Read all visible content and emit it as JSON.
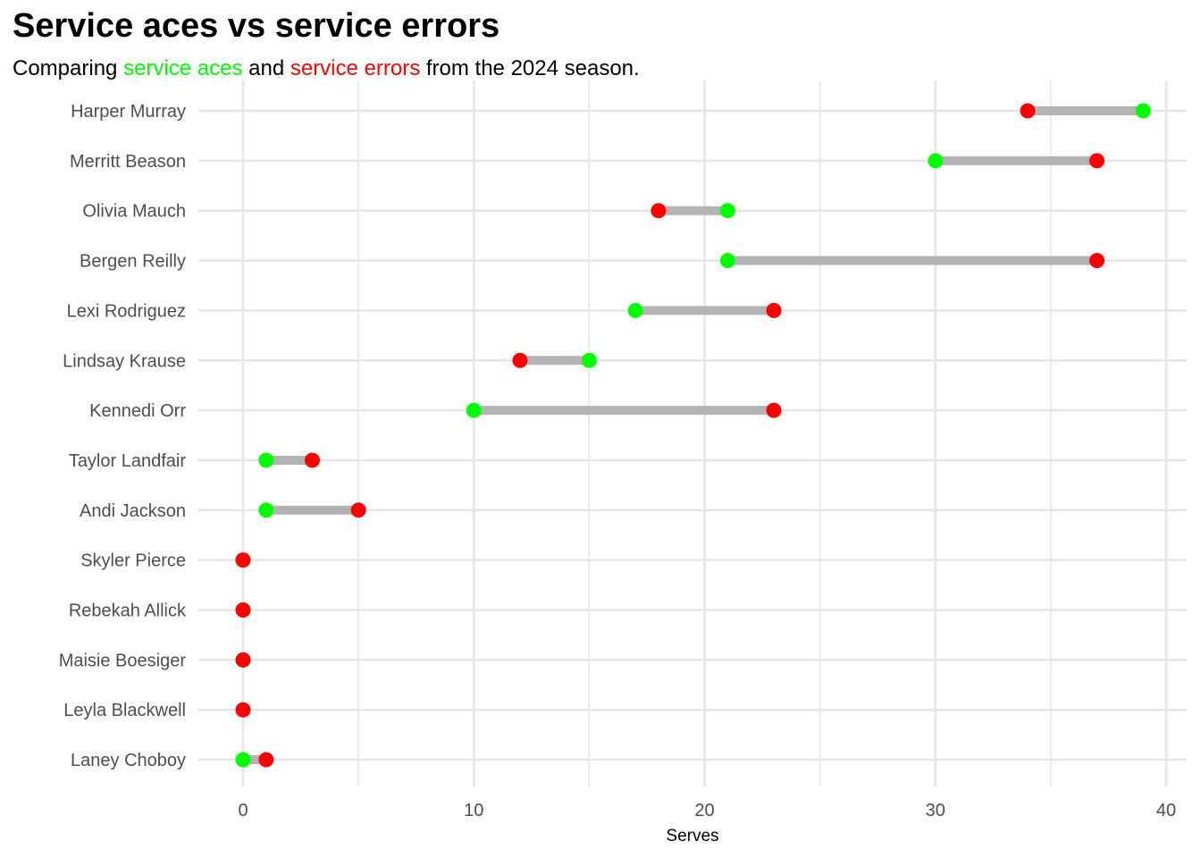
{
  "chart_data": {
    "type": "dumbbell",
    "title": "Service aces vs service errors",
    "subtitle": {
      "prefix": "Comparing ",
      "aces_label": "service aces",
      "middle": " and ",
      "errors_label": "service errors",
      "suffix": " from the 2024 season."
    },
    "xlabel": "Serves",
    "ylabel": "",
    "xlim": [
      0,
      40
    ],
    "xticks": [
      0,
      10,
      20,
      30,
      40
    ],
    "grid": true,
    "legend": "none",
    "colors": {
      "aces": "#00ff00",
      "errors": "#ff0000",
      "segment": "#b3b3b3",
      "grid": "#e5e5e5"
    },
    "series": [
      {
        "name": "service aces",
        "values": [
          39,
          30,
          21,
          21,
          17,
          15,
          10,
          1,
          1,
          0,
          0,
          0,
          0,
          0
        ]
      },
      {
        "name": "service errors",
        "values": [
          34,
          37,
          18,
          37,
          23,
          12,
          23,
          3,
          5,
          0,
          0,
          0,
          0,
          1
        ]
      }
    ],
    "categories": [
      "Harper Murray",
      "Merritt Beason",
      "Olivia Mauch",
      "Bergen Reilly",
      "Lexi Rodriguez",
      "Lindsay Krause",
      "Kennedi Orr",
      "Taylor Landfair",
      "Andi Jackson",
      "Skyler Pierce",
      "Rebekah Allick",
      "Maisie Boesiger",
      "Leyla Blackwell",
      "Laney Choboy"
    ]
  }
}
